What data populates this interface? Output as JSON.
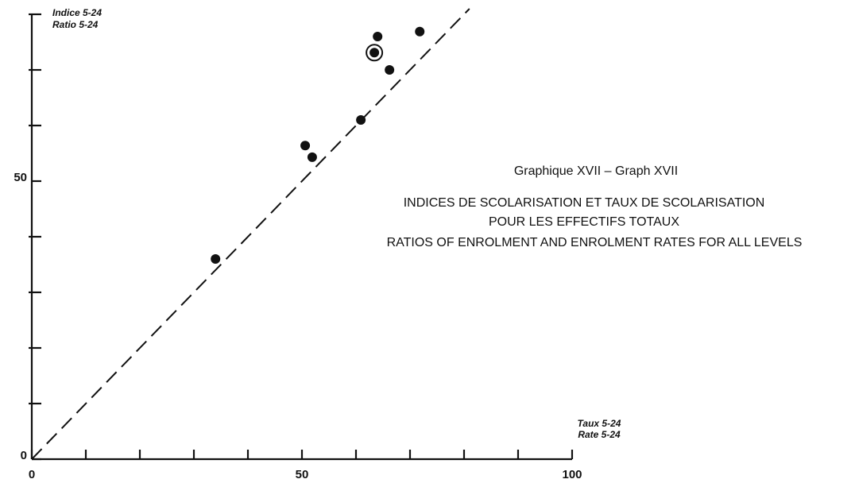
{
  "chart_data": {
    "type": "scatter",
    "title": "Graphique XVII – Graph XVII",
    "subtitle": [
      "INDICES DE SCOLARISATION ET TAUX DE SCOLARISATION",
      "POUR LES EFFECTIFS TOTAUX",
      "RATIOS OF ENROLMENT AND ENROLMENT RATES FOR ALL LEVELS"
    ],
    "xlabel": [
      "Taux 5-24",
      "Rate 5-24"
    ],
    "ylabel": [
      "Indice 5-24",
      "Ratio 5-24"
    ],
    "x": [
      34,
      50.6,
      51.9,
      60.9,
      63.4,
      64,
      66.2,
      71.8
    ],
    "values": [
      36,
      56.4,
      54.3,
      61,
      73.1,
      76,
      70,
      76.9
    ],
    "highlighted": [
      4
    ],
    "color": "#111111",
    "diagonal": true,
    "xlim": [
      0,
      100
    ],
    "ylim": [
      0,
      80
    ],
    "xticks": [
      0,
      50,
      100
    ],
    "yticks": [
      0,
      50
    ],
    "xminorticks": [
      10,
      20,
      30,
      40,
      60,
      70,
      80,
      90
    ],
    "yminorticks": [
      10,
      20,
      30,
      40,
      60,
      70,
      80
    ]
  }
}
